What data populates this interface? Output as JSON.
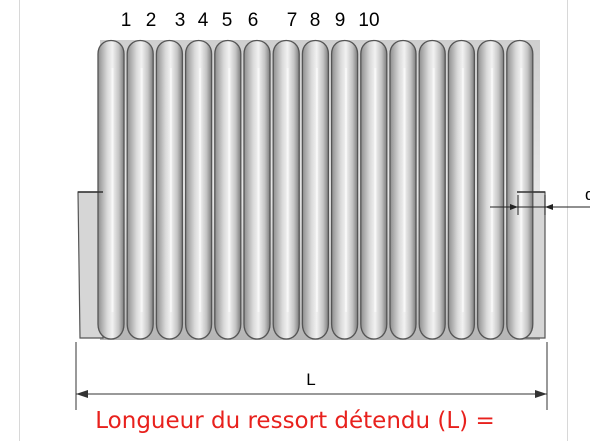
{
  "coil_numbers": [
    "1",
    "2",
    "3",
    "4",
    "5",
    "6",
    "7",
    "8",
    "9",
    "10"
  ],
  "length_label": "L",
  "wire_diameter_label": "d",
  "caption": "Longueur du ressort détendu (L) =",
  "colors": {
    "coil_fill": "#c9c9c9",
    "coil_outline": "#555555",
    "caption": "#e8211d"
  }
}
